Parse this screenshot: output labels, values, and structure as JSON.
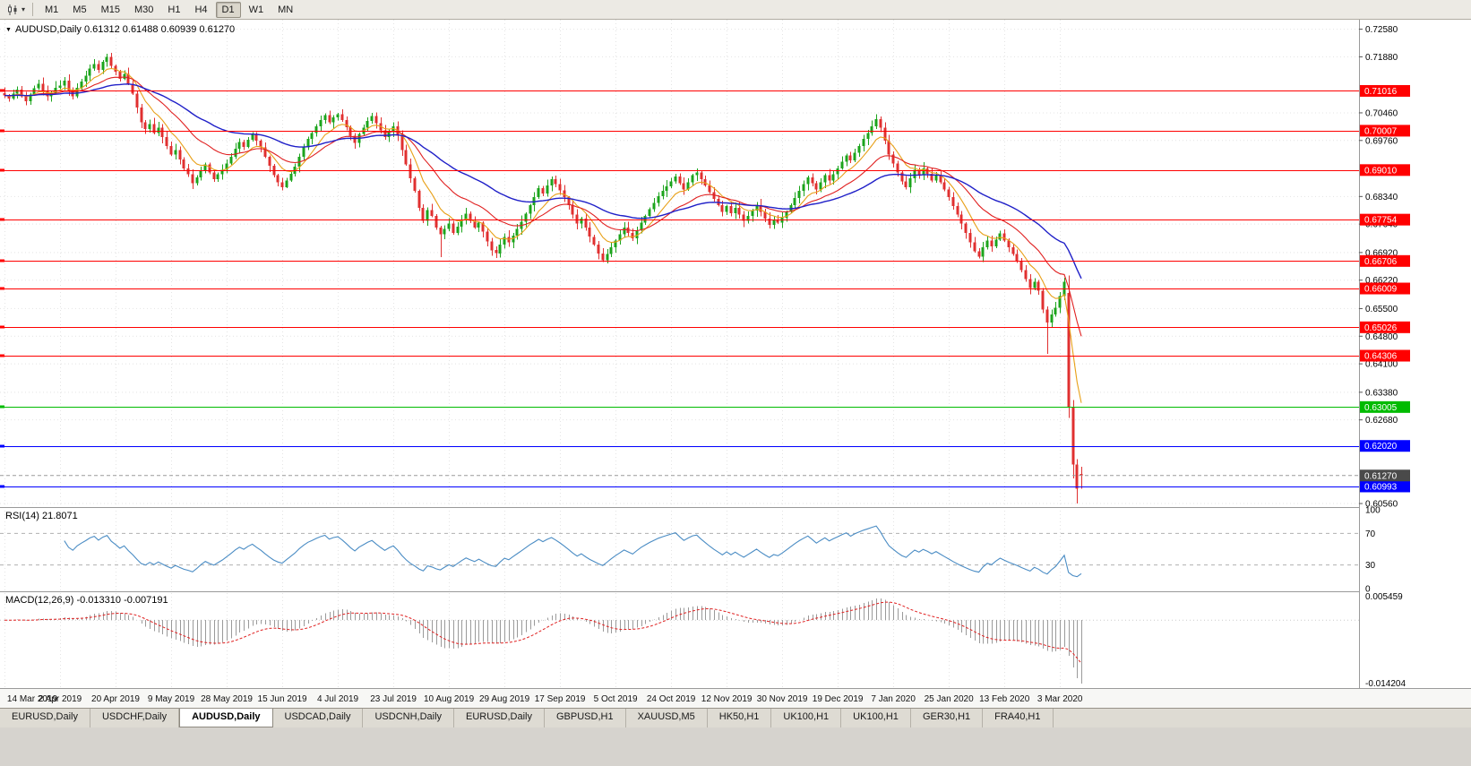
{
  "toolbar": {
    "timeframes": [
      "M1",
      "M5",
      "M15",
      "M30",
      "H1",
      "H4",
      "D1",
      "W1",
      "MN"
    ],
    "active_timeframe": "D1"
  },
  "chart": {
    "symbol": "AUDUSD",
    "timeframe": "Daily",
    "title_line": "AUDUSD,Daily 0.61312 0.61488 0.60939 0.61270",
    "ohlc": {
      "open": "0.61312",
      "high": "0.61488",
      "low": "0.60939",
      "close": "0.61270"
    },
    "price_axis": {
      "labels": [
        {
          "value": 0.7258,
          "text": "0.72580"
        },
        {
          "value": 0.7188,
          "text": "0.71880"
        },
        {
          "value": 0.7046,
          "text": "0.70460"
        },
        {
          "value": 0.6976,
          "text": "0.69760"
        },
        {
          "value": 0.6834,
          "text": "0.68340"
        },
        {
          "value": 0.6764,
          "text": "0.67640"
        },
        {
          "value": 0.6692,
          "text": "0.66920"
        },
        {
          "value": 0.6622,
          "text": "0.66220"
        },
        {
          "value": 0.655,
          "text": "0.65500"
        },
        {
          "value": 0.648,
          "text": "0.64800"
        },
        {
          "value": 0.641,
          "text": "0.64100"
        },
        {
          "value": 0.6338,
          "text": "0.63380"
        },
        {
          "value": 0.6268,
          "text": "0.62680"
        },
        {
          "value": 0.6056,
          "text": "0.60560"
        }
      ]
    },
    "levels": [
      {
        "value": 0.71016,
        "text": "0.71016",
        "color": "#ff0000"
      },
      {
        "value": 0.70007,
        "text": "0.70007",
        "color": "#ff0000"
      },
      {
        "value": 0.6901,
        "text": "0.69010",
        "color": "#ff0000"
      },
      {
        "value": 0.67754,
        "text": "0.67754",
        "color": "#ff0000"
      },
      {
        "value": 0.66706,
        "text": "0.66706",
        "color": "#ff0000"
      },
      {
        "value": 0.66009,
        "text": "0.66009",
        "color": "#ff0000"
      },
      {
        "value": 0.65026,
        "text": "0.65026",
        "color": "#ff0000"
      },
      {
        "value": 0.64306,
        "text": "0.64306",
        "color": "#ff0000"
      },
      {
        "value": 0.63005,
        "text": "0.63005",
        "color": "#00bb00"
      },
      {
        "value": 0.6202,
        "text": "0.62020",
        "color": "#0000ff"
      },
      {
        "value": 0.60993,
        "text": "0.60993",
        "color": "#0000ff"
      }
    ],
    "current_price": {
      "value": 0.6127,
      "text": "0.61270",
      "badge_color": "#4a4a4a"
    },
    "date_axis": {
      "labels": [
        "14 Mar 2019",
        "2 Apr 2019",
        "20 Apr 2019",
        "9 May 2019",
        "28 May 2019",
        "15 Jun 2019",
        "4 Jul 2019",
        "23 Jul 2019",
        "10 Aug 2019",
        "29 Aug 2019",
        "17 Sep 2019",
        "5 Oct 2019",
        "24 Oct 2019",
        "12 Nov 2019",
        "30 Nov 2019",
        "19 Dec 2019",
        "7 Jan 2020",
        "25 Jan 2020",
        "13 Feb 2020",
        "3 Mar 2020"
      ],
      "candles_per_label": 13
    },
    "colors": {
      "up": "#1ca41c",
      "down": "#e03030",
      "ma_fast": "#e8a018",
      "ma_mid": "#e02020",
      "ma_slow": "#2020c8",
      "grid": "#e4e4e4"
    }
  },
  "indicators": {
    "rsi": {
      "label": "RSI(14) 21.8071",
      "period": 14,
      "value": 21.8071,
      "levels": [
        70,
        30
      ],
      "axis_labels": [
        "100",
        "70",
        "30",
        "0"
      ],
      "line_color": "#4a8cc4"
    },
    "macd": {
      "label": "MACD(12,26,9) -0.013310 -0.007191",
      "fast": 12,
      "slow": 26,
      "signal": 9,
      "value": -0.01331,
      "signal_value": -0.007191,
      "axis_top": "0.005459",
      "axis_bottom": "-0.014204",
      "range_max": 0.005459,
      "range_min": -0.014204,
      "histogram_color": "#9a9a9a",
      "signal_color": "#e02020"
    }
  },
  "chart_data": {
    "type": "candlestick",
    "series_name": "AUDUSD Daily (approx closes, Mar 2019 - Mar 2020)",
    "visible_price_range": [
      0.6047,
      0.7282
    ],
    "closes": [
      0.709,
      0.7082,
      0.7095,
      0.7105,
      0.7088,
      0.7075,
      0.7092,
      0.7108,
      0.712,
      0.7102,
      0.7088,
      0.7096,
      0.711,
      0.7115,
      0.7128,
      0.7102,
      0.7088,
      0.711,
      0.7125,
      0.714,
      0.7158,
      0.717,
      0.7155,
      0.7175,
      0.7188,
      0.7165,
      0.715,
      0.7132,
      0.7145,
      0.712,
      0.7095,
      0.706,
      0.7022,
      0.7005,
      0.7018,
      0.6995,
      0.7008,
      0.6985,
      0.6962,
      0.694,
      0.6952,
      0.6928,
      0.6905,
      0.689,
      0.6868,
      0.6882,
      0.69,
      0.6915,
      0.6895,
      0.6878,
      0.689,
      0.6902,
      0.6918,
      0.6935,
      0.6955,
      0.6972,
      0.696,
      0.6978,
      0.6992,
      0.6975,
      0.6958,
      0.6935,
      0.6912,
      0.6888,
      0.687,
      0.6858,
      0.6875,
      0.6892,
      0.691,
      0.6935,
      0.6958,
      0.698,
      0.6995,
      0.7012,
      0.7028,
      0.704,
      0.7022,
      0.7035,
      0.7042,
      0.7028,
      0.701,
      0.6988,
      0.697,
      0.6992,
      0.7008,
      0.7025,
      0.7038,
      0.702,
      0.7002,
      0.6985,
      0.7,
      0.7012,
      0.6988,
      0.6952,
      0.6915,
      0.688,
      0.6848,
      0.6805,
      0.6772,
      0.68,
      0.6785,
      0.6755,
      0.6738,
      0.6752,
      0.6765,
      0.6742,
      0.6758,
      0.6775,
      0.679,
      0.6772,
      0.6755,
      0.6768,
      0.6745,
      0.672,
      0.6698,
      0.669,
      0.6712,
      0.6732,
      0.6718,
      0.6735,
      0.6752,
      0.677,
      0.679,
      0.6812,
      0.6832,
      0.6855,
      0.6842,
      0.6862,
      0.6878,
      0.6865,
      0.685,
      0.6832,
      0.6812,
      0.6788,
      0.6765,
      0.6778,
      0.6755,
      0.6732,
      0.6712,
      0.669,
      0.6672,
      0.6688,
      0.6705,
      0.6722,
      0.6738,
      0.6755,
      0.6742,
      0.6728,
      0.6748,
      0.6768,
      0.6785,
      0.6802,
      0.6818,
      0.6835,
      0.6848,
      0.686,
      0.6872,
      0.6885,
      0.6868,
      0.6852,
      0.687,
      0.6888,
      0.6895,
      0.6878,
      0.6862,
      0.6845,
      0.6828,
      0.6812,
      0.6795,
      0.681,
      0.6792,
      0.6805,
      0.6788,
      0.6772,
      0.6785,
      0.6798,
      0.6812,
      0.6795,
      0.6778,
      0.6762,
      0.6775,
      0.6768,
      0.678,
      0.6795,
      0.6812,
      0.683,
      0.6848,
      0.6865,
      0.6882,
      0.6868,
      0.6852,
      0.687,
      0.6888,
      0.6875,
      0.689,
      0.6905,
      0.6922,
      0.6938,
      0.6925,
      0.6945,
      0.6962,
      0.698,
      0.6995,
      0.7012,
      0.703,
      0.7008,
      0.6975,
      0.694,
      0.6918,
      0.6895,
      0.6872,
      0.6858,
      0.688,
      0.6902,
      0.6888,
      0.6905,
      0.6892,
      0.6875,
      0.6888,
      0.687,
      0.6852,
      0.6832,
      0.681,
      0.6788,
      0.6765,
      0.6742,
      0.6718,
      0.6695,
      0.6682,
      0.6705,
      0.6722,
      0.6708,
      0.6725,
      0.674,
      0.6722,
      0.6705,
      0.6688,
      0.667,
      0.6648,
      0.6625,
      0.6602,
      0.6618,
      0.6595,
      0.6548,
      0.6515,
      0.6535,
      0.6552,
      0.6582,
      0.6618,
      0.63,
      0.6155,
      0.6094,
      0.6127
    ],
    "overrides": {
      "24": {
        "high": 0.7196
      },
      "102": {
        "low": 0.668
      },
      "115": {
        "low": 0.6678
      },
      "140": {
        "low": 0.6668
      },
      "204": {
        "high": 0.7043
      },
      "244": {
        "low": 0.6435
      },
      "249": {
        "open": 0.659,
        "high": 0.6634,
        "low": 0.6273,
        "close": 0.63
      },
      "250": {
        "open": 0.63,
        "high": 0.6318,
        "low": 0.612,
        "close": 0.6155
      },
      "251": {
        "open": 0.6155,
        "high": 0.6168,
        "low": 0.6056,
        "close": 0.6094
      },
      "252": {
        "open": 0.61312,
        "high": 0.61488,
        "low": 0.60939,
        "close": 0.6127
      }
    }
  },
  "tabs": {
    "active_index": 2,
    "items": [
      "EURUSD,Daily",
      "USDCHF,Daily",
      "AUDUSD,Daily",
      "USDCAD,Daily",
      "USDCNH,Daily",
      "EURUSD,Daily",
      "GBPUSD,H1",
      "XAUUSD,M5",
      "HK50,H1",
      "UK100,H1",
      "UK100,H1",
      "GER30,H1",
      "FRA40,H1"
    ]
  }
}
